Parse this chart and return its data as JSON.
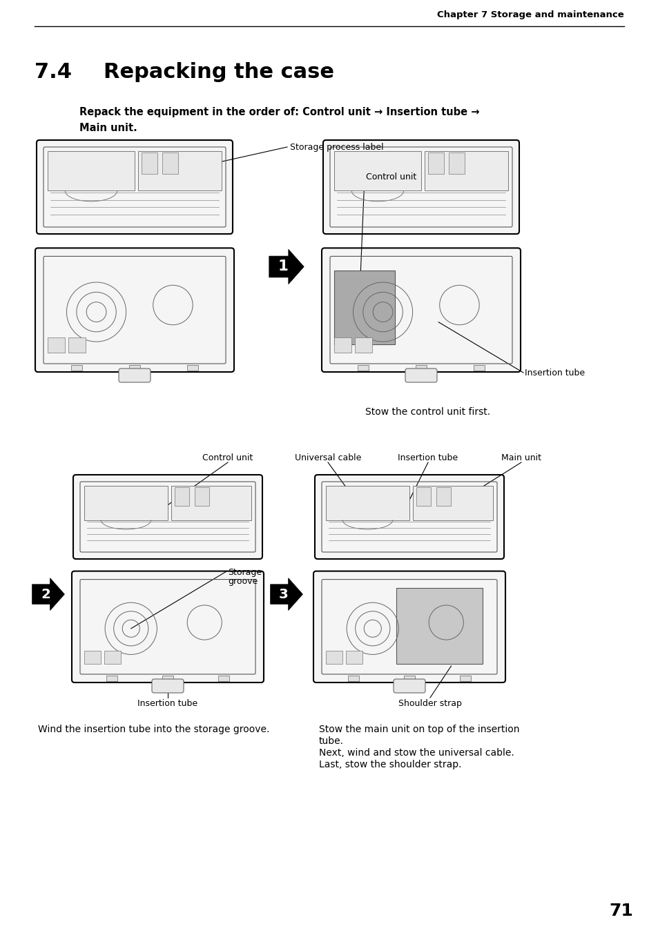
{
  "bg_color": "#ffffff",
  "header_text": "Chapter 7 Storage and maintenance",
  "section_number": "7.4",
  "section_title": "Repacking the case",
  "intro_line1": "Repack the equipment in the order of: Control unit → Insertion tube →",
  "intro_line2": "Main unit.",
  "label_storage_process": "Storage process label",
  "label_control_unit_top": "Control unit",
  "label_insertion_tube_top": "Insertion tube",
  "caption_step1": "Stow the control unit first.",
  "label_control_unit_bottom": "Control unit",
  "label_universal_cable": "Universal cable",
  "label_insertion_tube_bottom": "Insertion tube",
  "label_main_unit": "Main unit",
  "label_storage_groove_1": "Storage",
  "label_storage_groove_2": "groove",
  "label_insertion_tube_lower": "Insertion tube",
  "label_shoulder_strap": "Shoulder strap",
  "caption_step2": "Wind the insertion tube into the storage groove.",
  "caption_step3_line1": "Stow the main unit on top of the insertion",
  "caption_step3_line2": "tube.",
  "caption_step3_line3": "Next, wind and stow the universal cable.",
  "caption_step3_line4": "Last, stow the shoulder strap.",
  "page_number": "71",
  "font_size_header": 9.5,
  "font_size_section_num": 22,
  "font_size_section_title": 22,
  "font_size_intro": 10.5,
  "font_size_label": 9,
  "font_size_caption": 10,
  "font_size_page": 18
}
